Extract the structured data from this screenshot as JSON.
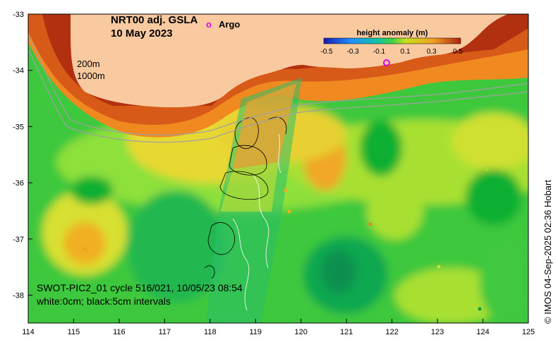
{
  "title": {
    "line1": "NRT00 adj. GSLA",
    "line2": "10 May 2023"
  },
  "legend": {
    "argo_symbol": "o",
    "argo_label": "Argo",
    "colorbar_title": "height anomaly (m)",
    "colorbar_ticks": [
      "-0.5",
      "-0.3",
      "-0.1",
      "0.1",
      "0.3",
      "0.5"
    ],
    "contour_200": "200m",
    "contour_1000": "1000m"
  },
  "swath_annotation": {
    "line1": "SWOT-PIC2_01 cycle 516/021, 10/05/23 08:54",
    "line2": "white:0cm; black:5cm intervals"
  },
  "axes": {
    "x_ticks": [
      "114",
      "115",
      "116",
      "117",
      "118",
      "119",
      "120",
      "121",
      "122",
      "123",
      "124",
      "125"
    ],
    "y_ticks": [
      "-33",
      "-34",
      "-35",
      "-36",
      "-37",
      "-38"
    ]
  },
  "credit": "© IMOS 04-Sep-2025 02:36 Hobart",
  "colors": {
    "land": "#f9c9a0",
    "argo": "#e000e0",
    "ocean_mid": "#22cc22"
  }
}
